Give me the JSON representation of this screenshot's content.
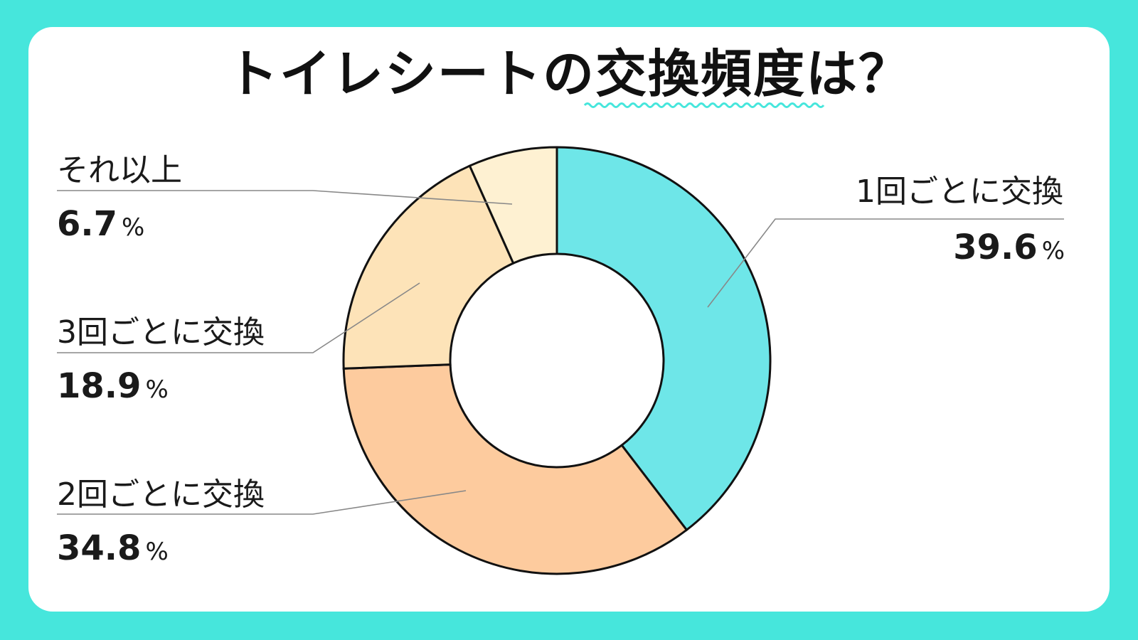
{
  "title": "トイレシートの交換頻度は？",
  "colors": {
    "background": "#46e6dc",
    "card": "#ffffff",
    "wave": "#46e6dc",
    "outline": "#111111",
    "leader": "#888888"
  },
  "chart_data": {
    "type": "pie",
    "title": "トイレシートの交換頻度は？",
    "unit": "%",
    "slices": [
      {
        "label": "1回ごとに交換",
        "value": 39.6,
        "value_text": "39.6",
        "color": "#6ee6e8"
      },
      {
        "label": "2回ごとに交換",
        "value": 34.8,
        "value_text": "34.8",
        "color": "#fdcb9e"
      },
      {
        "label": "3回ごとに交換",
        "value": 18.9,
        "value_text": "18.9",
        "color": "#fde3b8"
      },
      {
        "label": "それ以上",
        "value": 6.7,
        "value_text": "6.7",
        "color": "#fef1d2"
      }
    ]
  }
}
